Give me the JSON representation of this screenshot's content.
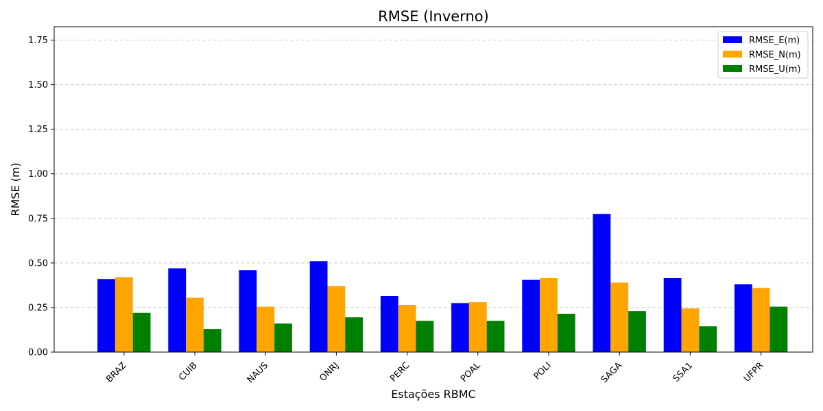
{
  "chart_data": {
    "type": "bar",
    "title": "RMSE (Inverno)",
    "xlabel": "Estações RBMC",
    "ylabel": "RMSE (m)",
    "categories": [
      "BRAZ",
      "CUIB",
      "NAUS",
      "ONRJ",
      "PERC",
      "POAL",
      "POLI",
      "SAGA",
      "SSA1",
      "UFPR"
    ],
    "series": [
      {
        "name": "RMSE_E(m)",
        "color": "#0000ff",
        "values": [
          0.41,
          0.47,
          0.46,
          0.51,
          0.315,
          0.275,
          0.405,
          0.775,
          0.415,
          0.38
        ]
      },
      {
        "name": "RMSE_N(m)",
        "color": "#ffa500",
        "values": [
          0.42,
          0.305,
          0.255,
          0.37,
          0.265,
          0.28,
          0.415,
          0.39,
          0.245,
          0.36
        ]
      },
      {
        "name": "RMSE_U(m)",
        "color": "#008000",
        "values": [
          0.22,
          0.13,
          0.16,
          0.195,
          0.175,
          0.175,
          0.215,
          0.23,
          0.145,
          0.255
        ]
      }
    ],
    "ylim": [
      0,
      1.825
    ],
    "yticks": [
      "0.00",
      "0.25",
      "0.50",
      "0.75",
      "1.00",
      "1.25",
      "1.50",
      "1.75"
    ],
    "grid": "y-dashed",
    "legend": "top-right"
  }
}
